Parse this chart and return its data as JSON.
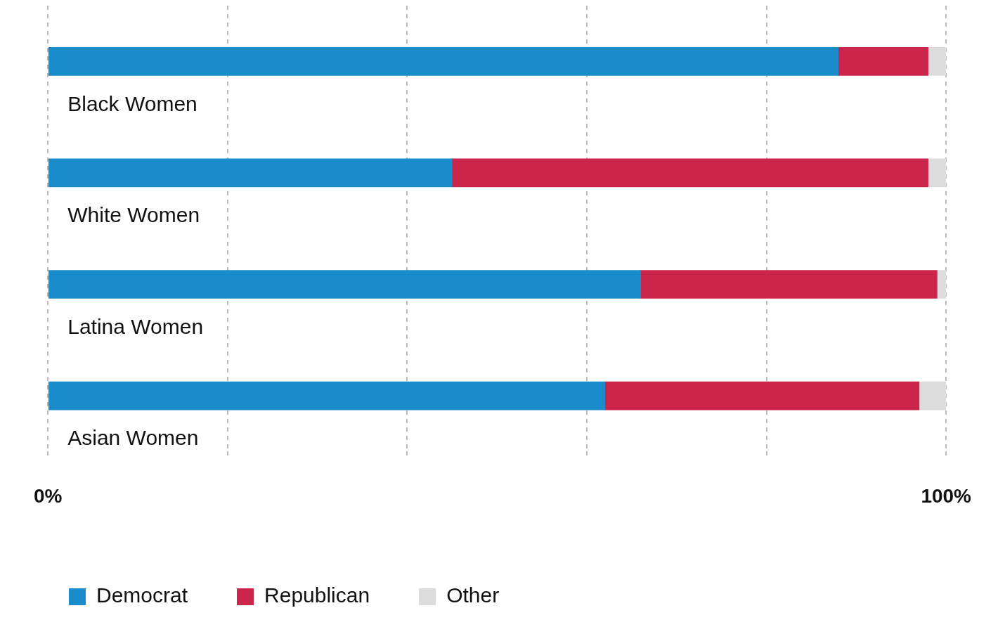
{
  "chart_data": {
    "type": "bar",
    "orientation": "horizontal",
    "stacked": true,
    "categories": [
      "Black Women",
      "White Women",
      "Latina Women",
      "Asian Women"
    ],
    "series": [
      {
        "name": "Democrat",
        "color": "#1a8bcb",
        "values": [
          88,
          45,
          66,
          62
        ]
      },
      {
        "name": "Republican",
        "color": "#cb254c",
        "values": [
          10,
          53,
          33,
          35
        ]
      },
      {
        "name": "Other",
        "color": "#dcdcdc",
        "values": [
          2,
          2,
          1,
          3
        ]
      }
    ],
    "xlim": [
      0,
      100
    ],
    "xticks": [
      {
        "value": 0,
        "label": "0%"
      },
      {
        "value": 20,
        "label": null
      },
      {
        "value": 40,
        "label": null
      },
      {
        "value": 60,
        "label": null
      },
      {
        "value": 80,
        "label": null
      },
      {
        "value": 100,
        "label": "100%"
      }
    ],
    "grid": "x",
    "legend": "bottom left"
  }
}
